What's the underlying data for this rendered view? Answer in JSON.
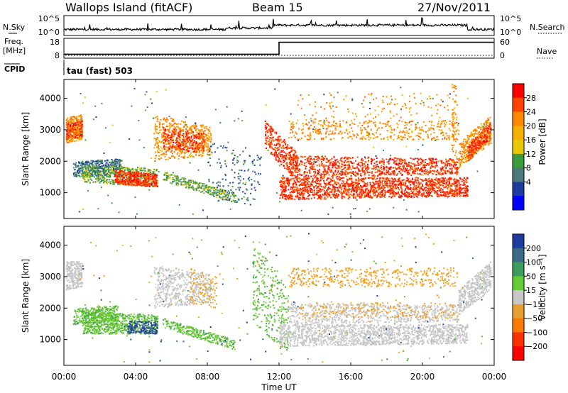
{
  "header": {
    "station": "Wallops Island (fitACF)",
    "beam": "Beam 15",
    "date": "27/Nov/2011"
  },
  "chart_data": [
    {
      "type": "line",
      "panel": "nsky-nsearch",
      "left_label": "N.Sky",
      "right_label": "N.Search",
      "left_ticks": [
        "10^5",
        "10^0"
      ],
      "right_ticks": [
        "10^5",
        "10^0"
      ]
    },
    {
      "type": "line",
      "panel": "freq-nave",
      "left_label_1": "Freq.",
      "left_label_2": "[MHz]",
      "right_label": "Nave",
      "left_ticks": [
        "18",
        "8"
      ],
      "right_ticks": [
        "60",
        "0"
      ],
      "freq_steps": [
        {
          "time": 0.0,
          "value": 10.0
        },
        {
          "time": 12.0,
          "value": 10.0
        },
        {
          "time": 12.0,
          "value": 16.0
        },
        {
          "time": 24.0,
          "value": 16.0
        }
      ]
    },
    {
      "type": "table",
      "panel": "cpid",
      "label": "CPID",
      "program": "tau (fast) 503"
    },
    {
      "type": "heatmap",
      "panel": "power",
      "ylabel": "Slant Range [km]",
      "ylim": [
        180,
        4600
      ],
      "yticks": [
        "1000",
        "2000",
        "3000",
        "4000"
      ],
      "colorbar_label": "Power [dB]",
      "colorbar_ticks": [
        "28",
        "24",
        "20",
        "16",
        "12",
        "8",
        "4"
      ],
      "colorbar_colors": [
        "#ff0000",
        "#ff4400",
        "#ff8800",
        "#f5b000",
        "#e8c800",
        "#3c9c3c",
        "#4a7a7a",
        "#1e3ca0",
        "#0000ff"
      ]
    },
    {
      "type": "heatmap",
      "panel": "velocity",
      "ylabel": "Slant Range [km]",
      "ylim": [
        180,
        4600
      ],
      "yticks": [
        "1000",
        "2000",
        "3000",
        "4000"
      ],
      "colorbar_label": "Velocity [m s⁻¹]",
      "colorbar_ticks": [
        "200",
        "100",
        "50",
        "15",
        "−15",
        "−50",
        "−100",
        "−200"
      ],
      "colorbar_colors": [
        "#1e3ca0",
        "#3a6a8a",
        "#3c9c5c",
        "#66cc33",
        "#c8c8c8",
        "#e8a030",
        "#ff7a00",
        "#ff3000",
        "#ff0000"
      ]
    }
  ],
  "xaxis": {
    "label": "Time UT",
    "xlim": [
      0,
      24
    ],
    "ticks": [
      "00:00",
      "04:00",
      "08:00",
      "12:00",
      "16:00",
      "20:00",
      "00:00"
    ]
  }
}
